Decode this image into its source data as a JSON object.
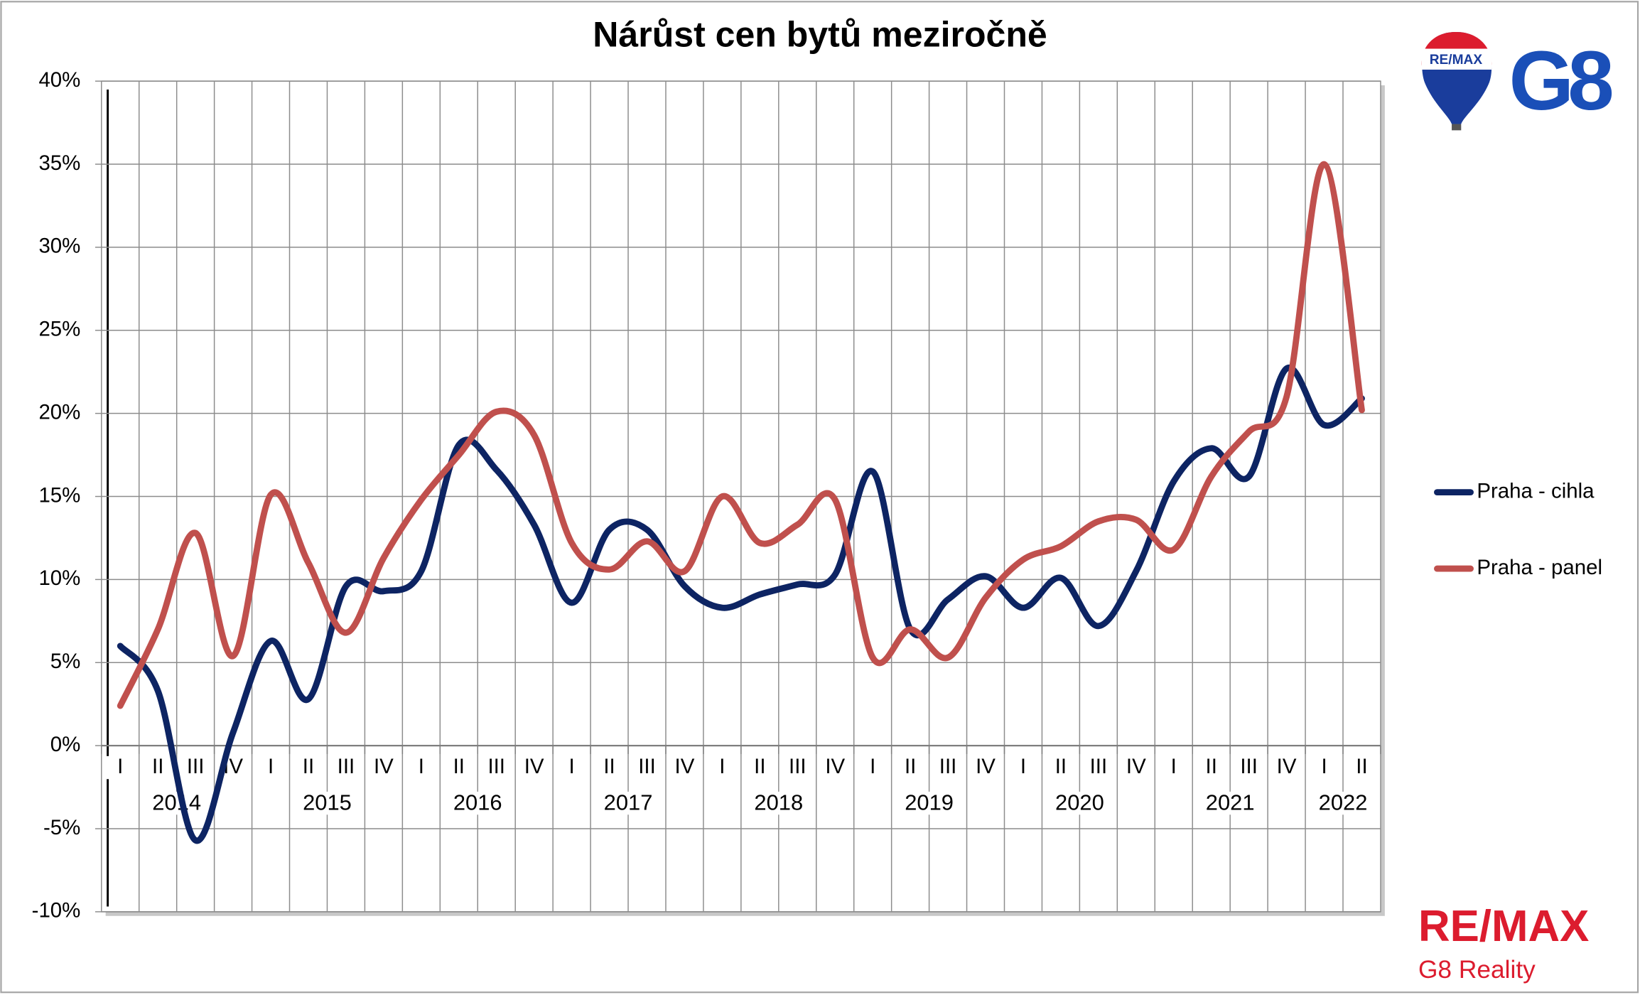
{
  "chart_data": {
    "type": "line",
    "title": "Nárůst cen bytů meziročně",
    "categories": [
      "I",
      "II",
      "III",
      "IV",
      "I",
      "II",
      "III",
      "IV",
      "I",
      "II",
      "III",
      "IV",
      "I",
      "II",
      "III",
      "IV",
      "I",
      "II",
      "III",
      "IV",
      "I",
      "II",
      "III",
      "IV",
      "I",
      "II",
      "III",
      "IV",
      "I",
      "II",
      "III",
      "IV",
      "I",
      "II"
    ],
    "years": [
      "2014",
      "2015",
      "2016",
      "2017",
      "2018",
      "2019",
      "2020",
      "2021",
      "2022"
    ],
    "series": [
      {
        "name": "Praha - cihla",
        "color": "#0d2463",
        "values": [
          6.0,
          3.3,
          -5.7,
          0.8,
          6.3,
          2.8,
          9.6,
          9.3,
          10.5,
          18.1,
          16.6,
          13.3,
          8.6,
          13.0,
          13.0,
          9.6,
          8.3,
          9.1,
          9.7,
          10.3,
          16.5,
          7.0,
          8.8,
          10.2,
          8.3,
          10.1,
          7.2,
          10.5,
          15.9,
          17.9,
          16.2,
          22.7,
          19.3,
          20.9
        ]
      },
      {
        "name": "Praha - panel",
        "color": "#c0504d",
        "values": [
          2.4,
          7.0,
          12.8,
          5.4,
          15.1,
          11.0,
          6.8,
          11.3,
          14.8,
          17.5,
          20.1,
          18.7,
          12.2,
          10.6,
          12.3,
          10.5,
          15.0,
          12.2,
          13.3,
          14.8,
          5.3,
          7.0,
          5.3,
          8.9,
          11.2,
          12.0,
          13.5,
          13.6,
          11.8,
          16.2,
          18.9,
          21.0,
          35.0,
          20.2
        ]
      }
    ],
    "ylim": [
      -10,
      40
    ],
    "yticks": [
      {
        "value": -10,
        "label": "-10%"
      },
      {
        "value": -5,
        "label": "-5%"
      },
      {
        "value": 0,
        "label": "0%"
      },
      {
        "value": 5,
        "label": "5%"
      },
      {
        "value": 10,
        "label": "10%"
      },
      {
        "value": 15,
        "label": "15%"
      },
      {
        "value": 20,
        "label": "20%"
      },
      {
        "value": 25,
        "label": "25%"
      },
      {
        "value": 30,
        "label": "30%"
      },
      {
        "value": 35,
        "label": "35%"
      },
      {
        "value": 40,
        "label": "40%"
      }
    ],
    "grid": true,
    "legend": "right"
  },
  "logo": {
    "balloon_text": "RE/MAX",
    "mark": "G8",
    "brand": "RE/MAX",
    "subtitle": "G8 Reality"
  }
}
